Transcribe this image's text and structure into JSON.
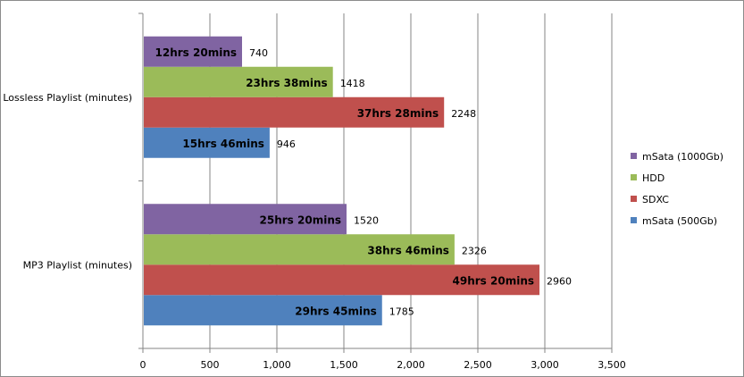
{
  "chart_data": {
    "type": "bar",
    "orientation": "horizontal",
    "categories": [
      "Lossless Playlist (minutes)",
      "MP3 Playlist (minutes)"
    ],
    "series": [
      {
        "name": "mSata (500Gb)",
        "color": "#4f81bd",
        "values": [
          946,
          1785
        ],
        "inner_labels": [
          "15hrs 46mins",
          "29hrs 45mins"
        ]
      },
      {
        "name": "SDXC",
        "color": "#c0504d",
        "values": [
          2248,
          2960
        ],
        "inner_labels": [
          "37hrs 28mins",
          "49hrs 20mins"
        ]
      },
      {
        "name": "HDD",
        "color": "#9bbb59",
        "values": [
          1418,
          2326
        ],
        "inner_labels": [
          "23hrs 38mins",
          "38hrs 46mins"
        ]
      },
      {
        "name": "mSata (1000Gb)",
        "color": "#8064a2",
        "values": [
          740,
          1520
        ],
        "inner_labels": [
          "12hrs 20mins",
          "25hrs 20mins"
        ]
      }
    ],
    "xlim": [
      0,
      3500
    ],
    "x_ticks": [
      0,
      500,
      1000,
      1500,
      2000,
      2500,
      3000,
      3500
    ],
    "x_tick_labels": [
      "0",
      "500",
      "1,000",
      "1,500",
      "2,000",
      "2,500",
      "3,000",
      "3,500"
    ],
    "grid": "vertical",
    "legend_position": "right",
    "legend_order": [
      "mSata (1000Gb)",
      "HDD",
      "SDXC",
      "mSata (500Gb)"
    ]
  }
}
